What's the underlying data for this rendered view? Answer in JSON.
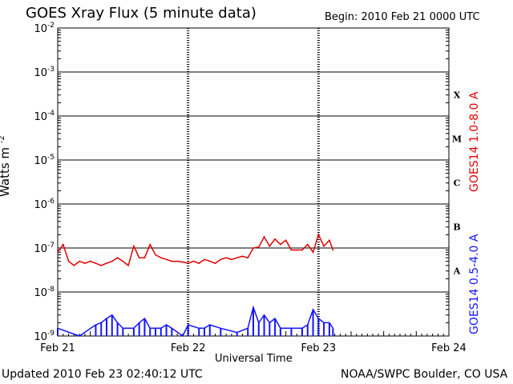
{
  "header": {
    "title": "GOES Xray Flux (5 minute data)",
    "begin": "Begin:  2010 Feb 21 0000 UTC"
  },
  "footer": {
    "updated": "Updated 2010 Feb 23 02:40:12 UTC",
    "credit": "NOAA/SWPC Boulder, CO USA"
  },
  "chart_data": {
    "type": "line",
    "title": "GOES Xray Flux (5 minute data)",
    "xlabel": "Universal Time",
    "ylabel": "Watts m",
    "ylabel_superscript": "-2",
    "yscale": "log",
    "ylim": [
      1e-09,
      0.01
    ],
    "xlim": [
      "2010-02-21",
      "2010-02-24"
    ],
    "x_tick_labels": [
      "Feb 21",
      "Feb 22",
      "Feb 23",
      "Feb 24"
    ],
    "y_tick_labels": [
      "10-9",
      "10-8",
      "10-7",
      "10-6",
      "10-5",
      "10-4",
      "10-3",
      "10-2"
    ],
    "flare_classes": [
      "A",
      "B",
      "C",
      "M",
      "X"
    ],
    "grid": true,
    "colors": {
      "long": "#e00000",
      "short": "#1414ff"
    },
    "series": [
      {
        "name": "GOES14 1.0-8.0 A",
        "color": "#e00000",
        "x": [
          "2010-02-21T00:00",
          "2010-02-21T01:00",
          "2010-02-21T02:00",
          "2010-02-21T03:00",
          "2010-02-21T04:00",
          "2010-02-21T05:00",
          "2010-02-21T06:00",
          "2010-02-21T07:00",
          "2010-02-21T08:00",
          "2010-02-21T09:00",
          "2010-02-21T10:00",
          "2010-02-21T11:00",
          "2010-02-21T12:00",
          "2010-02-21T13:00",
          "2010-02-21T14:00",
          "2010-02-21T15:00",
          "2010-02-21T16:00",
          "2010-02-21T17:00",
          "2010-02-21T18:00",
          "2010-02-21T19:00",
          "2010-02-21T20:00",
          "2010-02-21T21:00",
          "2010-02-21T22:00",
          "2010-02-21T23:00",
          "2010-02-22T00:00",
          "2010-02-22T01:00",
          "2010-02-22T02:00",
          "2010-02-22T03:00",
          "2010-02-22T04:00",
          "2010-02-22T05:00",
          "2010-02-22T06:00",
          "2010-02-22T07:00",
          "2010-02-22T08:00",
          "2010-02-22T09:00",
          "2010-02-22T10:00",
          "2010-02-22T11:00",
          "2010-02-22T12:00",
          "2010-02-22T13:00",
          "2010-02-22T14:00",
          "2010-02-22T15:00",
          "2010-02-22T16:00",
          "2010-02-22T17:00",
          "2010-02-22T18:00",
          "2010-02-22T19:00",
          "2010-02-22T20:00",
          "2010-02-22T21:00",
          "2010-02-22T22:00",
          "2010-02-22T23:00",
          "2010-02-23T00:00",
          "2010-02-23T01:00",
          "2010-02-23T02:00",
          "2010-02-23T02:40"
        ],
        "y": [
          8e-08,
          1.2e-07,
          5e-08,
          4e-08,
          5e-08,
          4.5e-08,
          5e-08,
          4.5e-08,
          4e-08,
          4.5e-08,
          5e-08,
          6e-08,
          5e-08,
          4e-08,
          1.1e-07,
          6e-08,
          6e-08,
          1.2e-07,
          7e-08,
          6e-08,
          5.5e-08,
          5e-08,
          5e-08,
          4.8e-08,
          4.5e-08,
          5e-08,
          4.5e-08,
          5.5e-08,
          5e-08,
          4.5e-08,
          5.5e-08,
          6e-08,
          5.5e-08,
          6e-08,
          6.5e-08,
          6e-08,
          1e-07,
          1.05e-07,
          1.8e-07,
          1.1e-07,
          1.6e-07,
          1.2e-07,
          1.5e-07,
          9e-08,
          9e-08,
          9e-08,
          1.2e-07,
          8e-08,
          2e-07,
          1.1e-07,
          1.5e-07,
          9e-08
        ]
      },
      {
        "name": "GOES14 0.5-4.0 A",
        "color": "#1414ff",
        "x": [
          "2010-02-21T00:00",
          "2010-02-21T04:00",
          "2010-02-21T07:00",
          "2010-02-21T08:00",
          "2010-02-21T09:00",
          "2010-02-21T10:00",
          "2010-02-21T11:00",
          "2010-02-21T12:00",
          "2010-02-21T14:00",
          "2010-02-21T15:00",
          "2010-02-21T16:00",
          "2010-02-21T17:00",
          "2010-02-21T18:00",
          "2010-02-21T19:00",
          "2010-02-21T20:00",
          "2010-02-21T21:00",
          "2010-02-21T23:00",
          "2010-02-22T00:00",
          "2010-02-22T02:00",
          "2010-02-22T03:00",
          "2010-02-22T04:00",
          "2010-02-22T06:00",
          "2010-02-22T09:00",
          "2010-02-22T11:00",
          "2010-02-22T12:00",
          "2010-02-22T13:00",
          "2010-02-22T14:00",
          "2010-02-22T15:00",
          "2010-02-22T16:00",
          "2010-02-22T17:00",
          "2010-02-22T19:00",
          "2010-02-22T21:00",
          "2010-02-22T22:00",
          "2010-02-22T23:00",
          "2010-02-23T00:00",
          "2010-02-23T01:00",
          "2010-02-23T02:00",
          "2010-02-23T02:40"
        ],
        "y": [
          1.5e-09,
          1e-09,
          1.8e-09,
          2e-09,
          2.5e-09,
          3e-09,
          2e-09,
          1.5e-09,
          1.5e-09,
          2e-09,
          2.5e-09,
          1.5e-09,
          1.5e-09,
          1.5e-09,
          1.8e-09,
          1.5e-09,
          1e-09,
          1.8e-09,
          1.5e-09,
          1.5e-09,
          1.8e-09,
          1.5e-09,
          1.2e-09,
          1.5e-09,
          4.5e-09,
          2e-09,
          3e-09,
          2e-09,
          2.5e-09,
          1.5e-09,
          1.5e-09,
          1.5e-09,
          1.8e-09,
          4e-09,
          2.5e-09,
          2e-09,
          2e-09,
          1.5e-09
        ]
      }
    ]
  }
}
